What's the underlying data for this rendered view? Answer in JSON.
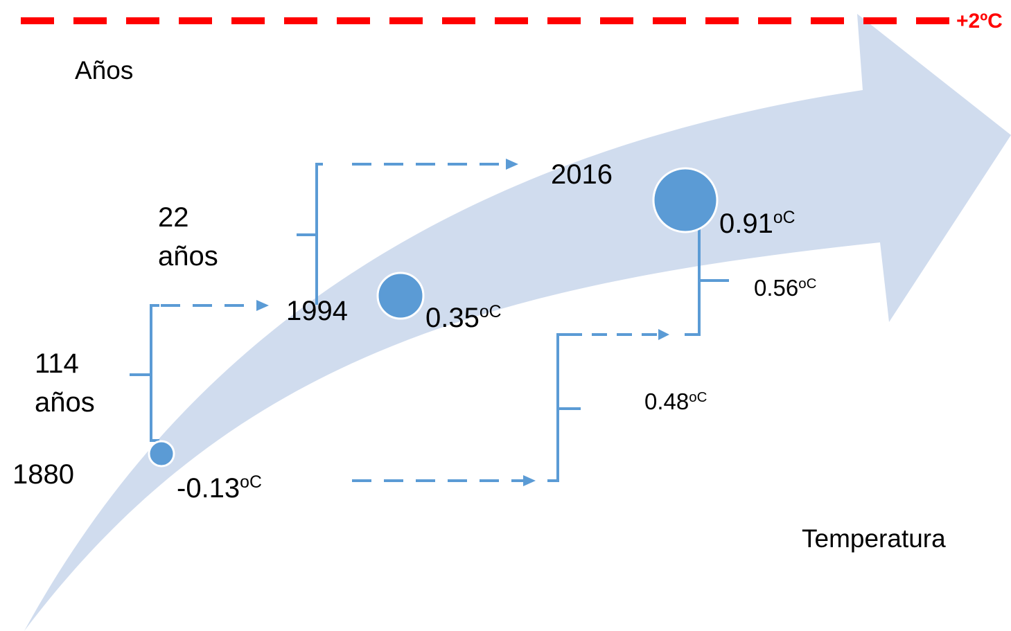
{
  "colors": {
    "trend_arrow": "#d0dcee",
    "marker": "#5b9bd5",
    "connector": "#5b9bd5",
    "limit_line": "#ff0000"
  },
  "limit": {
    "label": "+2ºC"
  },
  "axes": {
    "years_label": "Años",
    "temperature_label": "Temperatura"
  },
  "points": [
    {
      "year": "1880",
      "temp_value": "-0.13",
      "temp_unit": "oC"
    },
    {
      "year": "1994",
      "temp_value": "0.35",
      "temp_unit": "oC"
    },
    {
      "year": "2016",
      "temp_value": "0.91",
      "temp_unit": "oC"
    }
  ],
  "intervals": {
    "years_1880_1994": {
      "line1": "114",
      "line2": "años"
    },
    "years_1994_2016": {
      "line1": "22",
      "line2": "años"
    },
    "temp_1880_1994": {
      "value": "0.48",
      "unit": "oC"
    },
    "temp_1994_2016": {
      "value": "0.56",
      "unit": "oC"
    }
  }
}
